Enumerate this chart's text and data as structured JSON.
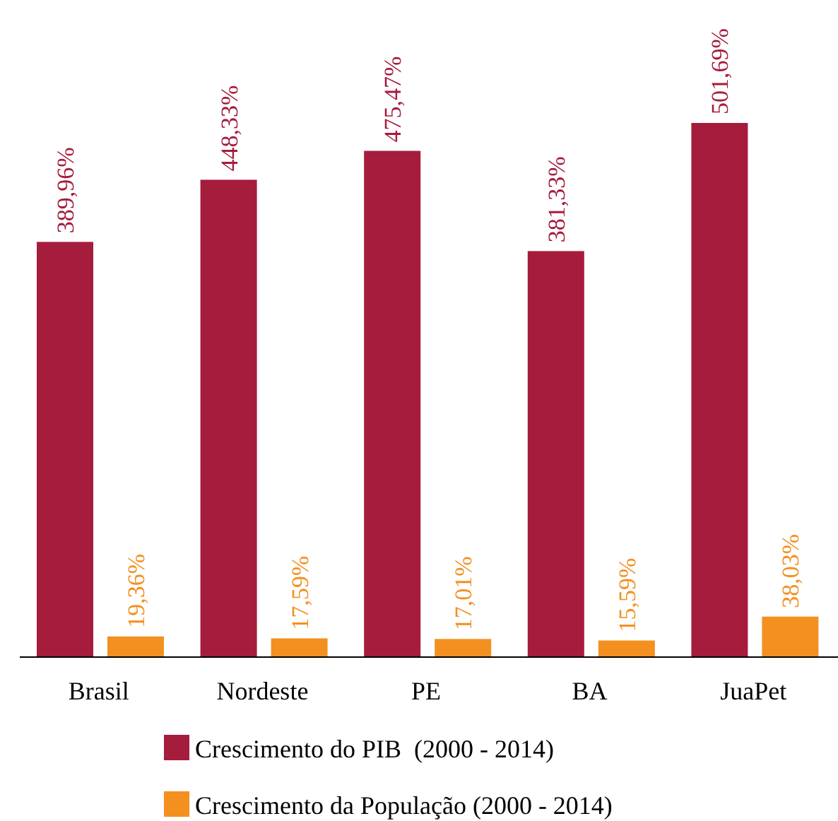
{
  "chart_data": {
    "type": "bar",
    "categories": [
      "Brasil",
      "Nordeste",
      "PE",
      "BA",
      "JuaPet"
    ],
    "series": [
      {
        "name": "Crescimento do PIB  (2000 - 2014)",
        "color": "#a51c3c",
        "values": [
          389.96,
          448.33,
          475.47,
          381.33,
          501.69
        ],
        "value_labels": [
          "389,96%",
          "448,33%",
          "475,47%",
          "381,33%",
          "501,69%"
        ]
      },
      {
        "name": "Crescimento da População (2000 - 2014)",
        "color": "#f39020",
        "values": [
          19.36,
          17.59,
          17.01,
          15.59,
          38.03
        ],
        "value_labels": [
          "19,36%",
          "17,59%",
          "17,01%",
          "15,59%",
          "38,03%"
        ]
      }
    ],
    "legend": "bottom"
  }
}
